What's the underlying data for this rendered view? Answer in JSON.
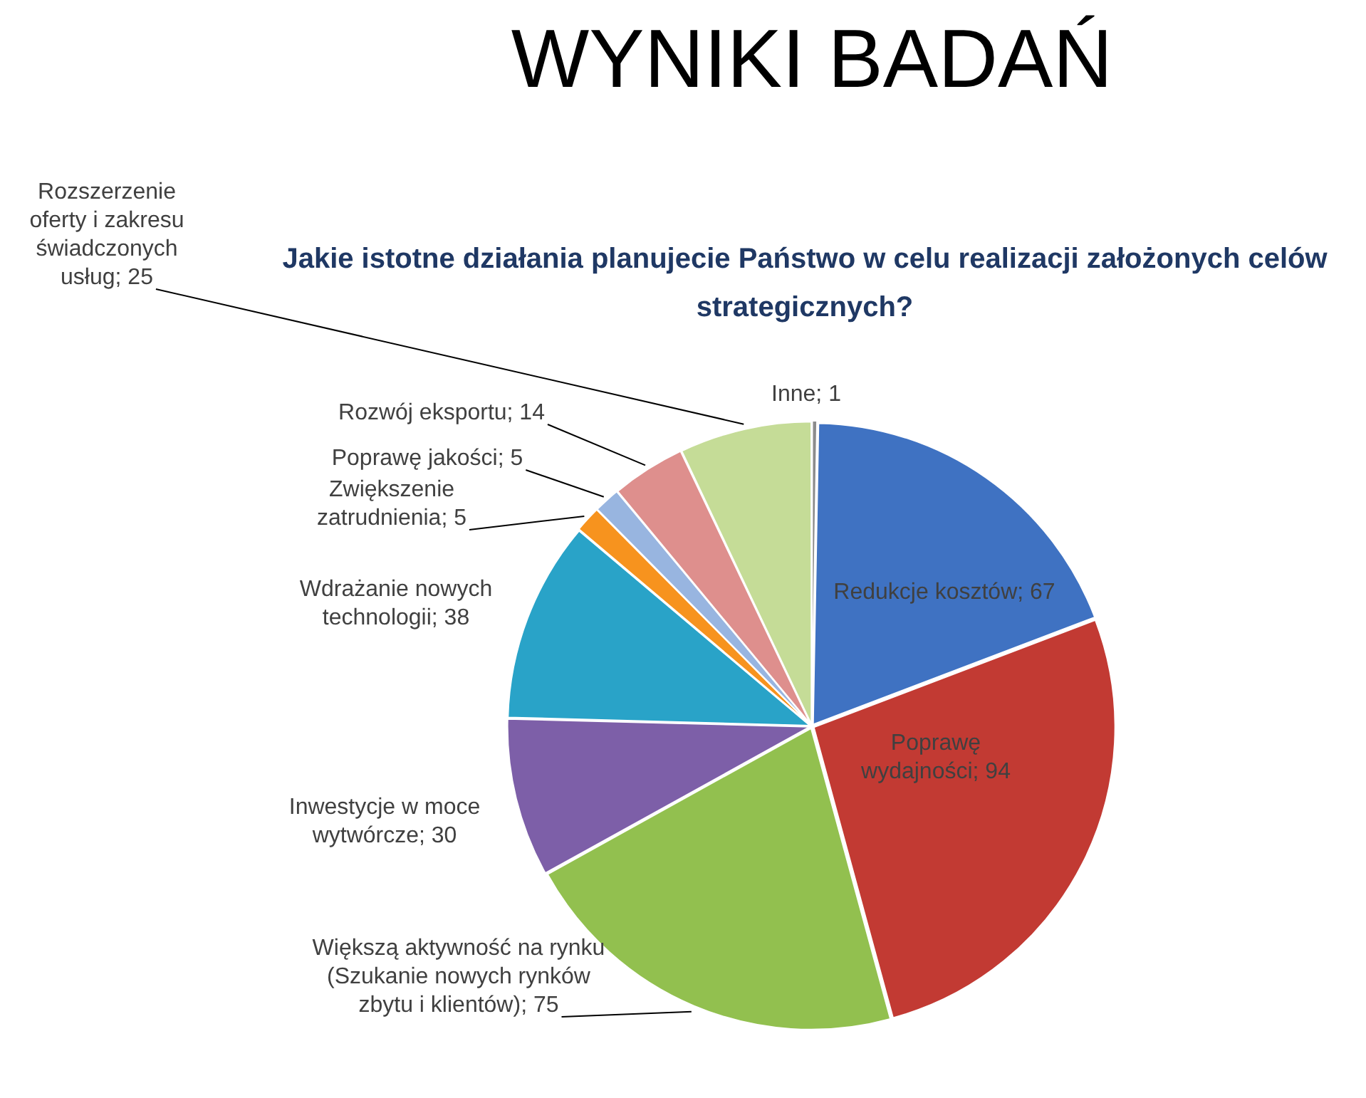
{
  "chart_data": {
    "type": "pie",
    "title": "WYNIKI BADAŃ",
    "subtitle": "Jakie istotne działania planujecie Państwo w celu realizacji założonych celów strategicznych?",
    "categories": [
      "Inne",
      "Redukcje kosztów",
      "Poprawę wydajności",
      "Większą aktywność na rynku (Szukanie nowych rynków zbytu i klientów)",
      "Inwestycje w moce wytwórcze",
      "Wdrażanie nowych technologii",
      "Zwiększenie zatrudnienia",
      "Poprawę jakości",
      "Rozwój eksportu",
      "Rozszerzenie oferty i zakresu świadczonych usług"
    ],
    "values": [
      1,
      67,
      94,
      75,
      30,
      38,
      5,
      5,
      14,
      25
    ],
    "colors": [
      "#8c8c8c",
      "#3f72c2",
      "#c23a33",
      "#92c04f",
      "#7d5fa8",
      "#29a3c8",
      "#f7931e",
      "#98b5e0",
      "#de8f8d",
      "#c5dc97"
    ],
    "value_labels": [
      "; 1",
      "; 67",
      "; 94",
      "; 75",
      "; 30",
      "; 38",
      "; 5",
      "; 5",
      "; 14",
      "; 25"
    ],
    "legend": false
  }
}
